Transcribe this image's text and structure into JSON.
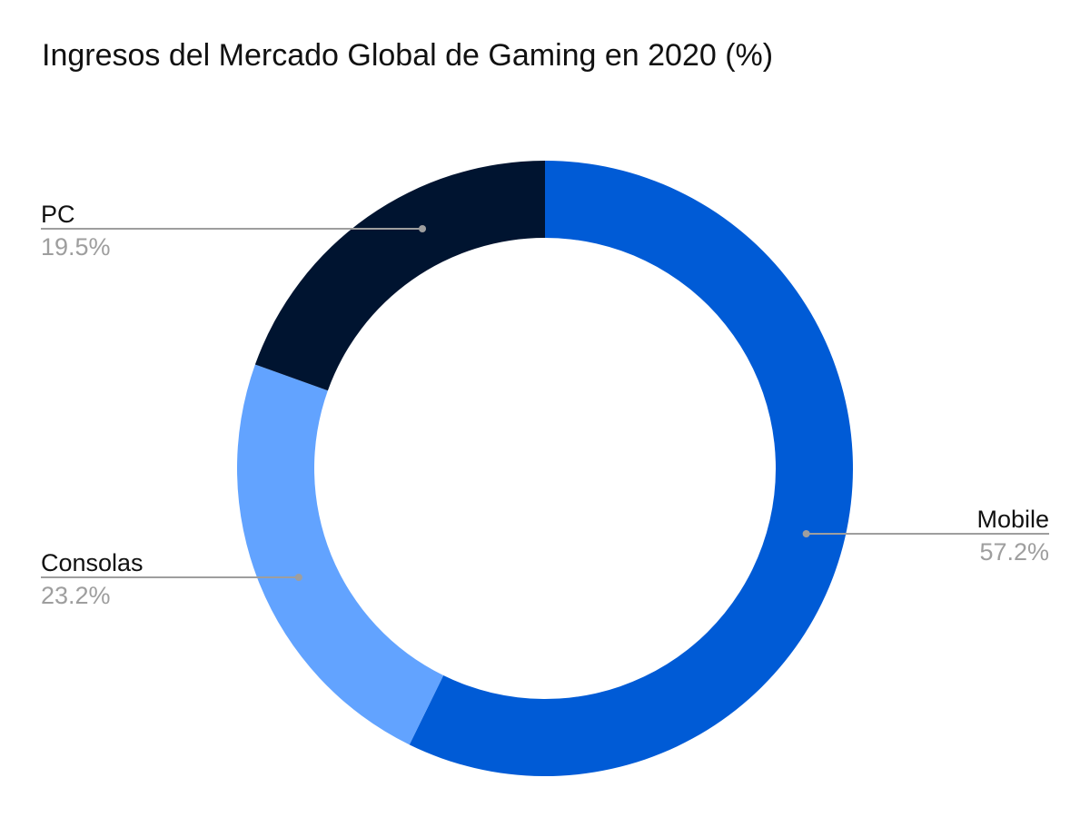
{
  "chart_data": {
    "type": "pie",
    "variant": "donut",
    "title": "Ingresos del Mercado Global de Gaming en 2020 (%)",
    "slices": [
      {
        "label": "Mobile",
        "value": 57.2,
        "value_label": "57.2%",
        "color": "#005bd6"
      },
      {
        "label": "Consolas",
        "value": 23.2,
        "value_label": "23.2%",
        "color": "#62a3ff"
      },
      {
        "label": "PC",
        "value": 19.5,
        "value_label": "19.5%",
        "color": "#001430"
      }
    ],
    "start": "top",
    "direction": "clockwise",
    "legend": "none"
  }
}
